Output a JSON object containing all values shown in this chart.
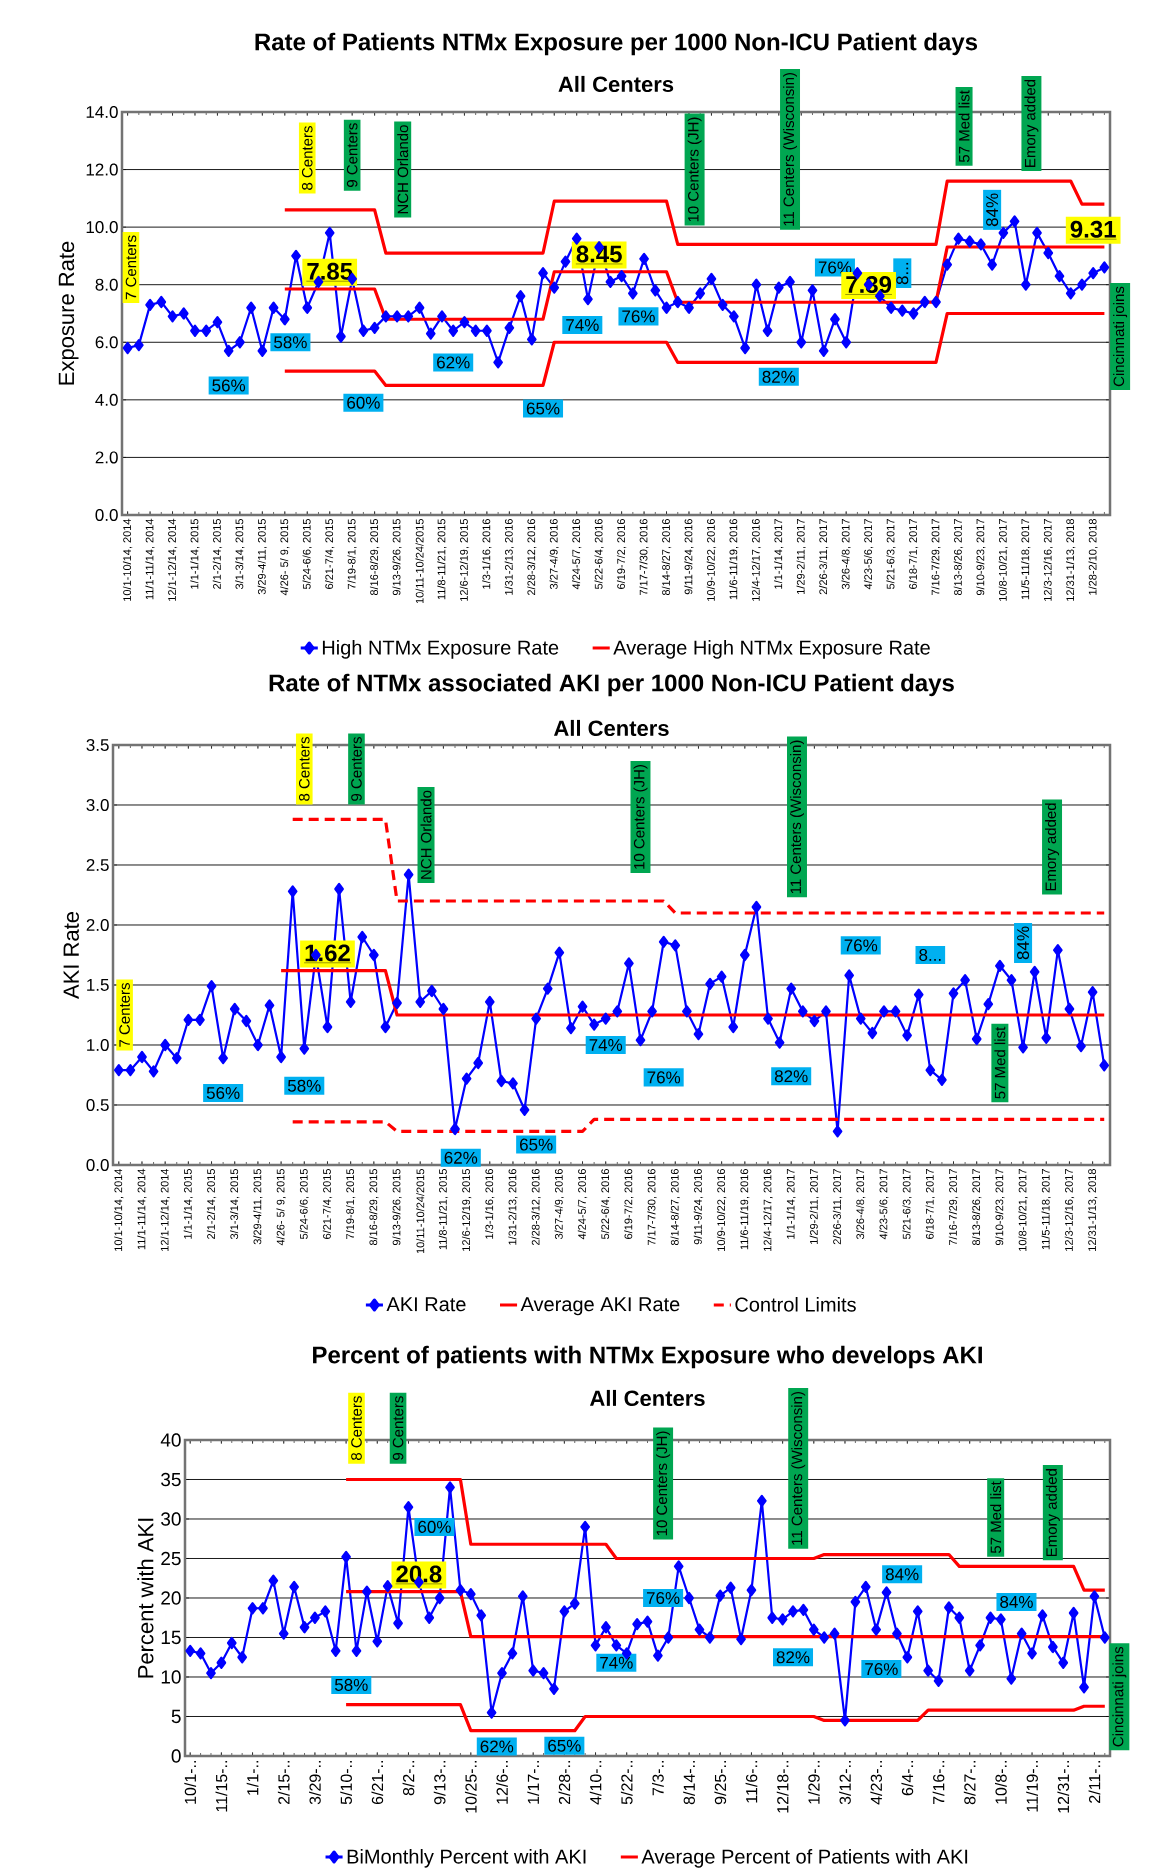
{
  "chart_data": [
    {
      "type": "line",
      "title": "Rate of Patients NTMx Exposure per 1000 Non-ICU Patient days",
      "subtitle": "All Centers",
      "ylabel": "Exposure Rate",
      "categories": [
        "10/1-10/14, 2014",
        null,
        "11/1-11/14, 2014",
        null,
        "12/1-12/14, 2014",
        null,
        "1/1-1/14, 2015",
        null,
        "2/1-2/14, 2015",
        null,
        "3/1-3/14, 2015",
        null,
        "3/29-4/11, 2015",
        null,
        "4/26- 5/ 9, 2015",
        null,
        "5/24-6/6, 2015",
        null,
        "6/21-7/4, 2015",
        null,
        "7/19-8/1, 2015",
        null,
        "8/16-8/29, 2015",
        null,
        "9/13-9/26, 2015",
        null,
        "10/11-10/24/2015",
        null,
        "11/8-11/21, 2015",
        null,
        "12/6-12/19, 2015",
        null,
        "1/3-1/16, 2016",
        null,
        "1/31-2/13, 2016",
        null,
        "2/28-3/12, 2016",
        null,
        "3/27-4/9, 2016",
        null,
        "4/24-5/7, 2016",
        null,
        "5/22-6/4, 2016",
        null,
        "6/19-7/2, 2016",
        null,
        "7/17-7/30, 2016",
        null,
        "8/14-8/27, 2016",
        null,
        "9/11-9/24, 2016",
        null,
        "10/9-10/22, 2016",
        null,
        "11/6-11/19, 2016",
        null,
        "12/4-12/17, 2016",
        null,
        "1/1-1/14, 2017",
        null,
        "1/29-2/11, 2017",
        null,
        "2/26-3/11, 2017",
        null,
        "3/26-4/8, 2017",
        null,
        "4/23-5/6, 2017",
        null,
        "5/21-6/3, 2017",
        null,
        "6/18-7/1, 2017",
        null,
        "7/16-7/29, 2017",
        null,
        "8/13-8/26, 2017",
        null,
        "9/10-9/23, 2017",
        null,
        "10/8-10/21, 2017",
        null,
        "11/5-11/18, 2017",
        null,
        "12/3-12/16, 2017",
        null,
        "12/31-1/13, 2018",
        null,
        "1/28-2/10, 2018",
        null
      ],
      "series": [
        {
          "name": "High NTMx Exposure Rate",
          "color": "#0000ff",
          "marker": "diamond",
          "values": [
            5.8,
            5.9,
            7.3,
            7.4,
            6.9,
            7.0,
            6.4,
            6.4,
            6.7,
            5.7,
            6.0,
            7.2,
            5.7,
            7.2,
            6.8,
            9.0,
            7.2,
            8.1,
            9.8,
            6.2,
            8.2,
            6.4,
            6.5,
            6.9,
            6.9,
            6.9,
            7.2,
            6.3,
            6.9,
            6.4,
            6.7,
            6.4,
            6.4,
            5.3,
            6.5,
            7.6,
            6.1,
            8.4,
            7.9,
            8.8,
            9.6,
            7.5,
            9.3,
            8.1,
            8.3,
            7.7,
            8.9,
            7.8,
            7.2,
            7.4,
            7.2,
            7.7,
            8.2,
            7.3,
            6.9,
            5.8,
            8.0,
            6.4,
            7.9,
            8.1,
            6.0,
            7.8,
            5.7,
            6.8,
            6.0,
            8.4,
            8.0,
            7.6,
            7.2,
            7.1,
            7.0,
            7.4,
            7.4,
            8.7,
            9.6,
            9.5,
            9.4,
            8.7,
            9.8,
            10.2,
            8.0,
            9.8,
            9.1,
            8.3,
            7.7,
            8.0,
            8.4,
            8.6
          ]
        },
        {
          "name": "Average High NTMx Exposure Rate",
          "color": "#ff0000",
          "values": [
            null,
            null,
            null,
            null,
            null,
            null,
            null,
            null,
            null,
            null,
            null,
            null,
            null,
            null,
            7.85,
            7.85,
            7.85,
            7.85,
            7.85,
            7.85,
            7.85,
            7.85,
            7.85,
            6.8,
            6.8,
            6.8,
            6.8,
            6.8,
            6.8,
            6.8,
            6.8,
            6.8,
            6.8,
            6.8,
            6.8,
            6.8,
            6.8,
            6.8,
            8.45,
            8.45,
            8.45,
            8.45,
            8.45,
            8.45,
            8.45,
            8.45,
            8.45,
            8.45,
            8.45,
            7.39,
            7.39,
            7.39,
            7.39,
            7.39,
            7.39,
            7.39,
            7.39,
            7.39,
            7.39,
            7.39,
            7.39,
            7.39,
            7.39,
            7.39,
            7.39,
            7.39,
            7.39,
            7.39,
            7.39,
            7.39,
            7.39,
            7.39,
            7.39,
            9.31,
            9.31,
            9.31,
            9.31,
            9.31,
            9.31,
            9.31,
            9.31,
            9.31,
            9.31,
            9.31,
            9.31,
            9.31,
            9.31,
            9.31
          ],
          "value_labels": [
            null,
            null,
            null,
            null,
            null,
            null,
            null,
            null,
            null,
            null,
            null,
            null,
            null,
            null,
            null,
            null,
            null,
            null,
            "7.85",
            null,
            null,
            null,
            null,
            null,
            null,
            null,
            null,
            null,
            null,
            null,
            null,
            null,
            null,
            null,
            null,
            null,
            null,
            null,
            null,
            null,
            null,
            null,
            "8.45",
            null,
            null,
            null,
            null,
            null,
            null,
            null,
            null,
            null,
            null,
            null,
            null,
            null,
            null,
            null,
            null,
            null,
            null,
            null,
            null,
            null,
            null,
            null,
            "7.39",
            null,
            null,
            null,
            null,
            null,
            null,
            null,
            null,
            null,
            null,
            null,
            null,
            null,
            null,
            null,
            null,
            null,
            null,
            null,
            "9.31",
            null
          ]
        },
        {
          "color": "#ff0000",
          "values": [
            null,
            null,
            null,
            null,
            null,
            null,
            null,
            null,
            null,
            null,
            null,
            null,
            null,
            null,
            10.6,
            10.6,
            10.6,
            10.6,
            10.6,
            10.6,
            10.6,
            10.6,
            10.6,
            9.1,
            9.1,
            9.1,
            9.1,
            9.1,
            9.1,
            9.1,
            9.1,
            9.1,
            9.1,
            9.1,
            9.1,
            9.1,
            9.1,
            9.1,
            10.9,
            10.9,
            10.9,
            10.9,
            10.9,
            10.9,
            10.9,
            10.9,
            10.9,
            10.9,
            10.9,
            9.4,
            9.4,
            9.4,
            9.4,
            9.4,
            9.4,
            9.4,
            9.4,
            9.4,
            9.4,
            9.4,
            9.4,
            9.4,
            9.4,
            9.4,
            9.4,
            9.4,
            9.4,
            9.4,
            9.4,
            9.4,
            9.4,
            9.4,
            9.4,
            11.6,
            11.6,
            11.6,
            11.6,
            11.6,
            11.6,
            11.6,
            11.6,
            11.6,
            11.6,
            11.6,
            11.6,
            10.8,
            10.8,
            10.8
          ]
        },
        {
          "color": "#ff0000",
          "values": [
            null,
            null,
            null,
            null,
            null,
            null,
            null,
            null,
            null,
            null,
            null,
            null,
            null,
            null,
            5.0,
            5.0,
            5.0,
            5.0,
            5.0,
            5.0,
            5.0,
            5.0,
            5.0,
            4.5,
            4.5,
            4.5,
            4.5,
            4.5,
            4.5,
            4.5,
            4.5,
            4.5,
            4.5,
            4.5,
            4.5,
            4.5,
            4.5,
            4.5,
            6.0,
            6.0,
            6.0,
            6.0,
            6.0,
            6.0,
            6.0,
            6.0,
            6.0,
            6.0,
            6.0,
            5.3,
            5.3,
            5.3,
            5.3,
            5.3,
            5.3,
            5.3,
            5.3,
            5.3,
            5.3,
            5.3,
            5.3,
            5.3,
            5.3,
            5.3,
            5.3,
            5.3,
            5.3,
            5.3,
            5.3,
            5.3,
            5.3,
            5.3,
            5.3,
            7.0,
            7.0,
            7.0,
            7.0,
            7.0,
            7.0,
            7.0,
            7.0,
            7.0,
            7.0,
            7.0,
            7.0,
            7.0,
            7.0,
            7.0
          ]
        }
      ],
      "ylim": [
        0,
        14
      ],
      "yticks": [
        {
          "value": 0,
          "label": "0.0"
        },
        {
          "value": 2,
          "label": "2.0"
        },
        {
          "value": 4,
          "label": "4.0"
        },
        {
          "value": 6,
          "label": "6.0"
        },
        {
          "value": 8,
          "label": "8.0"
        },
        {
          "value": 10,
          "label": "10.0"
        },
        {
          "value": 12,
          "label": "12.0"
        },
        {
          "value": 14,
          "label": "14.0"
        }
      ],
      "grid": "y",
      "legend": "bottom",
      "annotations": [
        "7 Centers",
        "8 Centers",
        "9 Centers",
        "NCH Orlando",
        "10 Centers (JH)",
        "11 Centers (Wisconsin)",
        "57 Med list",
        "Emory added",
        "Cincinnati joins",
        "56%",
        "58%",
        "60%",
        "62%",
        "65%",
        "74%",
        "76%",
        "82%",
        "76%",
        "8...",
        "84%"
      ]
    },
    {
      "type": "line",
      "title": "Rate of NTMx associated AKI per 1000 Non-ICU Patient days",
      "subtitle": "All Centers",
      "ylabel": "AKI Rate",
      "categories": [
        "10/1-10/14, 2014",
        null,
        "11/1-11/14, 2014",
        null,
        "12/1-12/14, 2014",
        null,
        "1/1-1/14, 2015",
        null,
        "2/1-2/14, 2015",
        null,
        "3/1-3/14, 2015",
        null,
        "3/29-4/11, 2015",
        null,
        "4/26- 5/ 9, 2015",
        null,
        "5/24-6/6, 2015",
        null,
        "6/21-7/4, 2015",
        null,
        "7/19-8/1, 2015",
        null,
        "8/16-8/29, 2015",
        null,
        "9/13-9/26, 2015",
        null,
        "10/11-10/24/2015",
        null,
        "11/8-11/21, 2015",
        null,
        "12/6-12/19, 2015",
        null,
        "1/3-1/16, 2016",
        null,
        "1/31-2/13, 2016",
        null,
        "2/28-3/12, 2016",
        null,
        "3/27-4/9, 2016",
        null,
        "4/24-5/7, 2016",
        null,
        "5/22-6/4, 2016",
        null,
        "6/19-7/2, 2016",
        null,
        "7/17-7/30, 2016",
        null,
        "8/14-8/27, 2016",
        null,
        "9/11-9/24, 2016",
        null,
        "10/9-10/22, 2016",
        null,
        "11/6-11/19, 2016",
        null,
        "12/4-12/17, 2016",
        null,
        "1/1-1/14, 2017",
        null,
        "1/29-2/11, 2017",
        null,
        "2/26-3/11, 2017",
        null,
        "3/26-4/8, 2017",
        null,
        "4/23-5/6, 2017",
        null,
        "5/21-6/3, 2017",
        null,
        "6/18-7/1, 2017",
        null,
        "7/16-7/29, 2017",
        null,
        "8/13-8/26, 2017",
        null,
        "9/10-9/23, 2017",
        null,
        "10/8-10/21, 2017",
        null,
        "11/5-11/18, 2017",
        null,
        "12/3-12/16, 2017",
        null,
        "12/31-1/13, 2018",
        null
      ],
      "series": [
        {
          "name": "AKI Rate",
          "color": "#0000ff",
          "marker": "diamond",
          "values": [
            0.79,
            0.79,
            0.9,
            0.78,
            1.0,
            0.89,
            1.21,
            1.21,
            1.49,
            0.89,
            1.3,
            1.2,
            1.0,
            1.33,
            0.9,
            2.28,
            0.97,
            1.75,
            1.15,
            2.3,
            1.36,
            1.9,
            1.75,
            1.15,
            1.35,
            2.42,
            1.36,
            1.45,
            1.3,
            0.3,
            0.72,
            0.85,
            1.36,
            0.7,
            0.68,
            0.46,
            1.22,
            1.47,
            1.77,
            1.14,
            1.32,
            1.17,
            1.22,
            1.28,
            1.68,
            1.04,
            1.28,
            1.86,
            1.83,
            1.28,
            1.09,
            1.51,
            1.57,
            1.15,
            1.75,
            2.15,
            1.22,
            1.02,
            1.47,
            1.28,
            1.2,
            1.28,
            0.28,
            1.58,
            1.22,
            1.1,
            1.28,
            1.28,
            1.08,
            1.42,
            0.79,
            0.71,
            1.43,
            1.54,
            1.05,
            1.34,
            1.66,
            1.54,
            0.98,
            1.61,
            1.06,
            1.79,
            1.3,
            0.99,
            1.44,
            0.83
          ]
        },
        {
          "name": "Average AKI Rate",
          "color": "#ff0000",
          "values": [
            null,
            null,
            null,
            null,
            null,
            null,
            null,
            null,
            null,
            null,
            null,
            null,
            null,
            null,
            1.62,
            1.62,
            1.62,
            1.62,
            1.62,
            1.62,
            1.62,
            1.62,
            1.62,
            1.62,
            1.25,
            1.25,
            1.25,
            1.25,
            1.25,
            1.25,
            1.25,
            1.25,
            1.25,
            1.25,
            1.25,
            1.25,
            1.25,
            1.25,
            1.25,
            1.25,
            1.25,
            1.25,
            1.25,
            1.25,
            1.25,
            1.25,
            1.25,
            1.25,
            1.25,
            1.25,
            1.25,
            1.25,
            1.25,
            1.25,
            1.25,
            1.25,
            1.25,
            1.25,
            1.25,
            1.25,
            1.25,
            1.25,
            1.25,
            1.25,
            1.25,
            1.25,
            1.25,
            1.25,
            1.25,
            1.25,
            1.25,
            1.25,
            1.25,
            1.25,
            1.25,
            1.25,
            1.25,
            1.25,
            1.25,
            1.25,
            1.25,
            1.25,
            1.25,
            1.25,
            1.25,
            1.25
          ],
          "value_labels": [
            null,
            null,
            null,
            null,
            null,
            null,
            null,
            null,
            null,
            null,
            null,
            null,
            null,
            null,
            null,
            null,
            null,
            null,
            "1.62",
            null,
            null,
            null,
            null,
            null,
            null,
            null,
            null,
            null,
            null,
            null,
            null,
            null,
            null,
            null,
            null,
            null,
            null,
            null,
            null,
            null,
            null,
            null,
            null,
            null,
            null,
            null,
            null,
            null,
            null,
            null,
            null,
            null,
            null,
            null,
            null,
            null,
            null,
            null,
            null,
            null,
            null,
            null,
            null,
            null,
            null,
            null,
            null,
            null,
            null,
            null,
            null,
            null,
            null,
            null,
            null,
            null,
            null,
            null,
            null,
            null,
            null,
            null,
            null,
            null,
            null,
            null
          ]
        },
        {
          "name": "Control Limits",
          "color": "#ff0000",
          "line_style": "dashed",
          "values": [
            null,
            null,
            null,
            null,
            null,
            null,
            null,
            null,
            null,
            null,
            null,
            null,
            null,
            null,
            null,
            2.88,
            2.88,
            2.88,
            2.88,
            2.88,
            2.88,
            2.88,
            2.88,
            2.88,
            2.2,
            2.2,
            2.2,
            2.2,
            2.2,
            2.2,
            2.2,
            2.2,
            2.2,
            2.2,
            2.2,
            2.2,
            2.2,
            2.2,
            2.2,
            2.2,
            2.2,
            2.2,
            2.2,
            2.2,
            2.2,
            2.2,
            2.2,
            2.2,
            2.1,
            2.1,
            2.1,
            2.1,
            2.1,
            2.1,
            2.1,
            2.1,
            2.1,
            2.1,
            2.1,
            2.1,
            2.1,
            2.1,
            2.1,
            2.1,
            2.1,
            2.1,
            2.1,
            2.1,
            2.1,
            2.1,
            2.1,
            2.1,
            2.1,
            2.1,
            2.1,
            2.1,
            2.1,
            2.1,
            2.1,
            2.1,
            2.1,
            2.1,
            2.1,
            2.1,
            2.1,
            2.1
          ]
        },
        {
          "color": "#ff0000",
          "line_style": "dashed",
          "values": [
            null,
            null,
            null,
            null,
            null,
            null,
            null,
            null,
            null,
            null,
            null,
            null,
            null,
            null,
            null,
            0.36,
            0.36,
            0.36,
            0.36,
            0.36,
            0.36,
            0.36,
            0.36,
            0.36,
            0.28,
            0.28,
            0.28,
            0.28,
            0.28,
            0.28,
            0.28,
            0.28,
            0.28,
            0.28,
            0.28,
            0.28,
            0.28,
            0.28,
            0.28,
            0.28,
            0.28,
            0.38,
            0.38,
            0.38,
            0.38,
            0.38,
            0.38,
            0.38,
            0.38,
            0.38,
            0.38,
            0.38,
            0.38,
            0.38,
            0.38,
            0.38,
            0.38,
            0.38,
            0.38,
            0.38,
            0.38,
            0.38,
            0.38,
            0.38,
            0.38,
            0.38,
            0.38,
            0.38,
            0.38,
            0.38,
            0.38,
            0.38,
            0.38,
            0.38,
            0.38,
            0.38,
            0.38,
            0.38,
            0.38,
            0.38,
            0.38,
            0.38,
            0.38,
            0.38,
            0.38,
            0.38
          ]
        }
      ],
      "ylim": [
        0,
        3.5
      ],
      "yticks": [
        {
          "value": 0,
          "label": "0.0"
        },
        {
          "value": 0.5,
          "label": "0.5"
        },
        {
          "value": 1,
          "label": "1.0"
        },
        {
          "value": 1.5,
          "label": "1.5"
        },
        {
          "value": 2,
          "label": "2.0"
        },
        {
          "value": 2.5,
          "label": "2.5"
        },
        {
          "value": 3,
          "label": "3.0"
        },
        {
          "value": 3.5,
          "label": "3.5"
        }
      ],
      "grid": "y",
      "legend": "bottom",
      "annotations": [
        "7 Centers",
        "8 Centers",
        "9 Centers",
        "NCH Orlando",
        "10 Centers (JH)",
        "11 Centers (Wisconsin)",
        "57 Med list",
        "Emory added",
        "56%",
        "58%",
        "62%",
        "65%",
        "74%",
        "76%",
        "82%",
        "76%",
        "8...",
        "84%"
      ]
    },
    {
      "type": "line",
      "title": "Percent of patients with NTMx Exposure who develops AKI",
      "subtitle": "All Centers",
      "ylabel": "Percent with AKI",
      "categories": [
        "10/1-..",
        null,
        null,
        "11/15-..",
        null,
        null,
        "1/1-..",
        null,
        null,
        "2/15-..",
        null,
        null,
        "3/29-..",
        null,
        null,
        "5/10-..",
        null,
        null,
        "6/21-..",
        null,
        null,
        "8/2-..",
        null,
        null,
        "9/13-..",
        null,
        null,
        "10/25-..",
        null,
        null,
        "12/6-..",
        null,
        null,
        "1/17-..",
        null,
        null,
        "2/28-..",
        null,
        null,
        "4/10-..",
        null,
        null,
        "5/22-..",
        null,
        null,
        "7/3-..",
        null,
        null,
        "8/14-..",
        null,
        null,
        "9/25-..",
        null,
        null,
        "11/6-..",
        null,
        null,
        "12/18-..",
        null,
        null,
        "1/29-..",
        null,
        null,
        "3/12-..",
        null,
        null,
        "4/23-..",
        null,
        null,
        "6/4-..",
        null,
        null,
        "7/16-..",
        null,
        null,
        "8/27-..",
        null,
        null,
        "10/8-..",
        null,
        null,
        "11/19-..",
        null,
        null,
        "12/31-..",
        null,
        null,
        "2/11-..",
        null
      ],
      "series": [
        {
          "name": "BiMonthly Percent with AKI",
          "color": "#0000ff",
          "marker": "diamond",
          "values": [
            13.3,
            13.0,
            10.5,
            11.8,
            14.3,
            12.5,
            18.7,
            18.7,
            22.2,
            15.5,
            21.4,
            16.3,
            17.5,
            18.3,
            13.3,
            25.2,
            13.3,
            20.8,
            14.5,
            21.5,
            16.8,
            31.5,
            22.0,
            17.5,
            20.0,
            34.0,
            21.0,
            20.5,
            17.8,
            5.5,
            10.5,
            13.0,
            20.2,
            10.8,
            10.5,
            8.5,
            18.3,
            19.3,
            29.0,
            14.0,
            16.3,
            14.0,
            13.0,
            16.7,
            17.0,
            12.7,
            15.0,
            24.0,
            20.0,
            16.0,
            15.0,
            20.3,
            21.3,
            14.8,
            21.0,
            32.3,
            17.5,
            17.3,
            18.3,
            18.5,
            16.0,
            15.0,
            15.5,
            4.5,
            19.5,
            21.4,
            16.0,
            20.7,
            15.5,
            12.5,
            18.3,
            10.8,
            9.5,
            18.8,
            17.5,
            10.8,
            14.0,
            17.5,
            17.3,
            9.8,
            15.5,
            13.0,
            17.8,
            13.8,
            11.8,
            18.1,
            8.7,
            20.2,
            15.0
          ]
        },
        {
          "name": "Average Percent of Patients with AKI",
          "color": "#ff0000",
          "values": [
            null,
            null,
            null,
            null,
            null,
            null,
            null,
            null,
            null,
            null,
            null,
            null,
            null,
            null,
            null,
            20.8,
            20.8,
            20.8,
            20.8,
            20.8,
            20.8,
            20.8,
            20.8,
            20.8,
            20.8,
            20.8,
            20.8,
            15.1,
            15.1,
            15.1,
            15.1,
            15.1,
            15.1,
            15.1,
            15.1,
            15.1,
            15.1,
            15.1,
            15.1,
            15.1,
            15.1,
            15.1,
            15.1,
            15.1,
            15.1,
            15.1,
            15.1,
            15.1,
            15.1,
            15.1,
            15.1,
            15.1,
            15.1,
            15.1,
            15.1,
            15.1,
            15.1,
            15.1,
            15.1,
            15.1,
            15.1,
            15.1,
            15.1,
            15.1,
            15.1,
            15.1,
            15.1,
            15.1,
            15.1,
            15.1,
            15.1,
            15.1,
            15.1,
            15.1,
            15.1,
            15.1,
            15.1,
            15.1,
            15.1,
            15.1,
            15.1,
            15.1,
            15.1,
            15.1,
            15.1,
            15.1,
            15.1,
            15.1,
            15.1
          ],
          "value_labels": [
            null,
            null,
            null,
            null,
            null,
            null,
            null,
            null,
            null,
            null,
            null,
            null,
            null,
            null,
            null,
            null,
            null,
            null,
            null,
            null,
            null,
            null,
            "20.8",
            null,
            null,
            null,
            null,
            null,
            null,
            null,
            null,
            null,
            null,
            null,
            null,
            null,
            null,
            null,
            null,
            null,
            null,
            null,
            null,
            null,
            null,
            null,
            null,
            null,
            null,
            null,
            null,
            null,
            null,
            null,
            null,
            null,
            null,
            null,
            null,
            null,
            null,
            null,
            null,
            null,
            null,
            null,
            null,
            null,
            null,
            null,
            null,
            null,
            null,
            null,
            null,
            null,
            null,
            null,
            null,
            null,
            null,
            null,
            null,
            null,
            null,
            null,
            null,
            null,
            null
          ]
        },
        {
          "color": "#ff0000",
          "values": [
            null,
            null,
            null,
            null,
            null,
            null,
            null,
            null,
            null,
            null,
            null,
            null,
            null,
            null,
            null,
            35,
            35,
            35,
            35,
            35,
            35,
            35,
            35,
            35,
            35,
            35,
            35,
            26.8,
            26.8,
            26.8,
            26.8,
            26.8,
            26.8,
            26.8,
            26.8,
            26.8,
            26.8,
            26.8,
            26.8,
            26.8,
            26.8,
            25,
            25,
            25,
            25,
            25,
            25,
            25,
            25,
            25,
            25,
            25,
            25,
            25,
            25,
            25,
            25,
            25,
            25,
            25,
            25,
            25.5,
            25.5,
            25.5,
            25.5,
            25.5,
            25.5,
            25.5,
            25.5,
            25.5,
            25.5,
            25.5,
            25.5,
            25.5,
            24,
            24,
            24,
            24,
            24,
            24,
            24,
            24,
            24,
            24,
            24,
            24,
            21,
            21,
            21
          ]
        },
        {
          "color": "#ff0000",
          "values": [
            null,
            null,
            null,
            null,
            null,
            null,
            null,
            null,
            null,
            null,
            null,
            null,
            null,
            null,
            null,
            6.5,
            6.5,
            6.5,
            6.5,
            6.5,
            6.5,
            6.5,
            6.5,
            6.5,
            6.5,
            6.5,
            6.5,
            3.2,
            3.2,
            3.2,
            3.2,
            3.2,
            3.2,
            3.2,
            3.2,
            3.2,
            3.2,
            3.2,
            5,
            5,
            5,
            5,
            5,
            5,
            5,
            5,
            5,
            5,
            5,
            5,
            5,
            5,
            5,
            5,
            5,
            5,
            5,
            5,
            5,
            5,
            5,
            4.5,
            4.5,
            4.5,
            4.5,
            4.5,
            4.5,
            4.5,
            4.5,
            4.5,
            4.5,
            5.8,
            5.8,
            5.8,
            5.8,
            5.8,
            5.8,
            5.8,
            5.8,
            5.8,
            5.8,
            5.8,
            5.8,
            5.8,
            5.8,
            5.8,
            6.3,
            6.3,
            6.3
          ]
        }
      ],
      "ylim": [
        0,
        40
      ],
      "yticks": [
        0,
        5,
        10,
        15,
        20,
        25,
        30,
        35,
        40
      ],
      "grid": "y",
      "legend": "bottom",
      "annotations": [
        "8 Centers",
        "9 Centers",
        "60%",
        "58%",
        "62%",
        "65%",
        "74%",
        "10 Centers (JH)",
        "76%",
        "11 Centers (Wisconsin)",
        "82%",
        "76%",
        "84%",
        "57 Med list",
        "84%",
        "Emory added",
        "Cincinnati joins"
      ]
    }
  ]
}
